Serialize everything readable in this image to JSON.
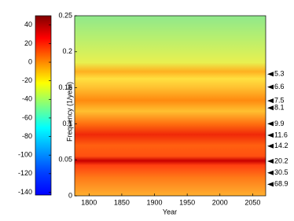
{
  "chart_data": {
    "type": "heatmap",
    "x_label": "Year",
    "y_label": "Frequency (1/year)",
    "xlim": [
      1778,
      2070
    ],
    "xticks": [
      1800,
      1850,
      1900,
      1950,
      2000,
      2050
    ],
    "ylim": [
      0,
      0.25
    ],
    "yticks": [
      0,
      0.05,
      0.1,
      0.15,
      0.2,
      0.25
    ],
    "colorbar": {
      "lim": [
        -143,
        50
      ],
      "ticks": [
        40,
        20,
        0,
        -20,
        -40,
        -60,
        -80,
        -100,
        -120,
        -140
      ]
    },
    "annotations": [
      {
        "label": "5.3",
        "y": 0.169
      },
      {
        "label": "6.6",
        "y": 0.151
      },
      {
        "label": "7.5",
        "y": 0.132
      },
      {
        "label": "8.1",
        "y": 0.122
      },
      {
        "label": "9.9",
        "y": 0.1
      },
      {
        "label": "11.6",
        "y": 0.084
      },
      {
        "label": "14.2",
        "y": 0.069
      },
      {
        "label": "20.2",
        "y": 0.048
      },
      {
        "label": "30.5",
        "y": 0.032
      },
      {
        "label": "68.9",
        "y": 0.016
      }
    ]
  }
}
